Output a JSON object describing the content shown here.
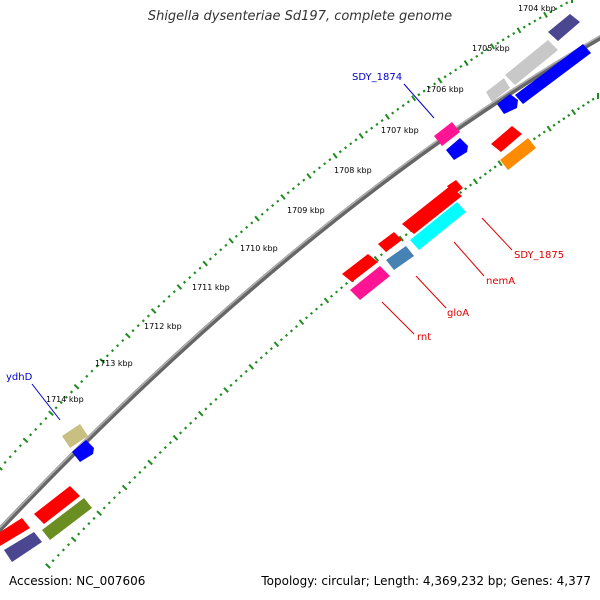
{
  "title": "Shigella dysenteriae Sd197, complete genome",
  "accession_text": "Accession: NC_007606",
  "topology_text": "Topology: circular; Length: 4,369,232 bp; Genes: 4,377",
  "kbp_labels": [
    "1704 kbp",
    "1705 kbp",
    "1706 kbp",
    "1707 kbp",
    "1708 kbp",
    "1709 kbp",
    "1710 kbp",
    "1711 kbp",
    "1712 kbp",
    "1713 kbp",
    "1714 kbp"
  ],
  "gene_labels": {
    "sdy_1874": "SDY_1874",
    "sdy_1875": "SDY_1875",
    "nemA": "nemA",
    "gloA": "gloA",
    "rnt": "rnt",
    "ydhD": "ydhD"
  },
  "colors": {
    "backbone": "#8c8c8c",
    "tick": "#1e8c1e",
    "red": "#ff0000",
    "blue": "#0000ff",
    "navy": "#4a4690",
    "silver": "#c8c8c8",
    "magenta": "#ff1493",
    "orange": "#ff8c00",
    "cyan": "#00ffff",
    "steelblue": "#4682b4",
    "khaki": "#c8c080",
    "olive": "#6b8e23",
    "label_blue": "#0000cc",
    "label_red": "#dd0000"
  }
}
